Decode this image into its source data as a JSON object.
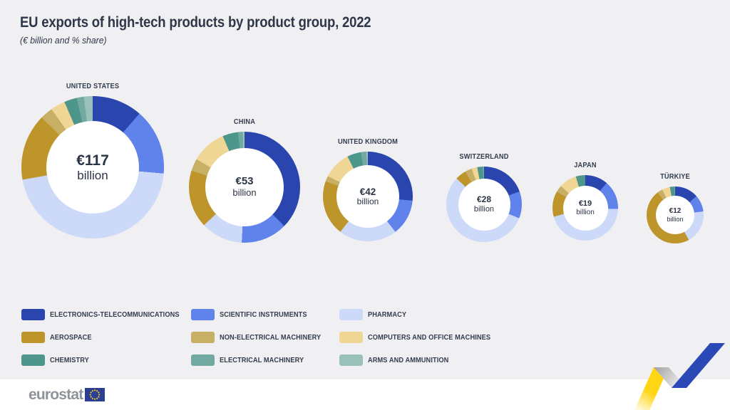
{
  "title": "EU exports of high-tech products by product group, 2022",
  "subtitle": "(€ billion and % share)",
  "logo": {
    "text": "eurostat"
  },
  "colors": {
    "background": "#f0f0f2",
    "footer": "#ffffff",
    "text": "#333d4f",
    "donut_hole": "#ffffff",
    "logo_text": "#8e9399",
    "flag_blue": "#2c3f94",
    "flag_star_yellow": "#ffd617",
    "ribbon_yellow": "#ffd514",
    "ribbon_blue": "#2a49b7"
  },
  "product_groups": [
    {
      "label": "ELECTRONICS-TELECOMMUNICATIONS",
      "color": "#2b45ae"
    },
    {
      "label": "SCIENTIFIC INSTRUMENTS",
      "color": "#5f82eb"
    },
    {
      "label": "PHARMACY",
      "color": "#ccd9f8"
    },
    {
      "label": "AEROSPACE",
      "color": "#bd952b"
    },
    {
      "label": "NON-ELECTRICAL MACHINERY",
      "color": "#c7b066"
    },
    {
      "label": "COMPUTERS AND OFFICE MACHINES",
      "color": "#f0d694"
    },
    {
      "label": "CHEMISTRY",
      "color": "#4d968c"
    },
    {
      "label": "ELECTRICAL MACHINERY",
      "color": "#72a9a0"
    },
    {
      "label": "ARMS AND AMMUNITION",
      "color": "#99c0b9"
    }
  ],
  "legend_column_order": [
    [
      0,
      3,
      6
    ],
    [
      1,
      4,
      7
    ],
    [
      2,
      5,
      8
    ]
  ],
  "chart_data": [
    {
      "type": "pie",
      "title": "UNITED STATES",
      "center_value": "€117",
      "center_unit": "billion",
      "total_eur_billion": 117,
      "labels": [
        "ELECTRONICS-TELECOMMUNICATIONS",
        "SCIENTIFIC INSTRUMENTS",
        "PHARMACY",
        "AEROSPACE",
        "NON-ELECTRICAL MACHINERY",
        "COMPUTERS AND OFFICE MACHINES",
        "CHEMISTRY",
        "ELECTRICAL MACHINERY",
        "ARMS AND AMMUNITION"
      ],
      "values": [
        11.4,
        15.0,
        45.8,
        15.1,
        2.9,
        3.3,
        2.9,
        1.6,
        2.0
      ]
    },
    {
      "type": "pie",
      "title": "CHINA",
      "center_value": "€53",
      "center_unit": "billion",
      "total_eur_billion": 53,
      "labels": [
        "ELECTRONICS-TELECOMMUNICATIONS",
        "SCIENTIFIC INSTRUMENTS",
        "PHARMACY",
        "AEROSPACE",
        "NON-ELECTRICAL MACHINERY",
        "COMPUTERS AND OFFICE MACHINES",
        "CHEMISTRY",
        "ELECTRICAL MACHINERY",
        "ARMS AND AMMUNITION"
      ],
      "values": [
        37.3,
        13.5,
        12.2,
        16.8,
        3.6,
        10.2,
        4.5,
        1.4,
        0.5
      ]
    },
    {
      "type": "pie",
      "title": "UNITED KINGDOM",
      "center_value": "€42",
      "center_unit": "billion",
      "total_eur_billion": 42,
      "labels": [
        "ELECTRONICS-TELECOMMUNICATIONS",
        "SCIENTIFIC INSTRUMENTS",
        "PHARMACY",
        "AEROSPACE",
        "NON-ELECTRICAL MACHINERY",
        "COMPUTERS AND OFFICE MACHINES",
        "CHEMISTRY",
        "ELECTRICAL MACHINERY",
        "ARMS AND AMMUNITION"
      ],
      "values": [
        26.5,
        13.0,
        21.0,
        20.0,
        2.0,
        10.0,
        5.0,
        2.0,
        0.5
      ]
    },
    {
      "type": "pie",
      "title": "SWITZERLAND",
      "center_value": "€28",
      "center_unit": "billion",
      "total_eur_billion": 28,
      "labels": [
        "ELECTRONICS-TELECOMMUNICATIONS",
        "SCIENTIFIC INSTRUMENTS",
        "PHARMACY",
        "AEROSPACE",
        "NON-ELECTRICAL MACHINERY",
        "COMPUTERS AND OFFICE MACHINES",
        "CHEMISTRY",
        "ELECTRICAL MACHINERY",
        "ARMS AND AMMUNITION"
      ],
      "values": [
        19.5,
        11.5,
        56.0,
        4.7,
        3.0,
        2.4,
        2.4,
        0.5,
        0.0
      ]
    },
    {
      "type": "pie",
      "title": "JAPAN",
      "center_value": "€19",
      "center_unit": "billion",
      "total_eur_billion": 19,
      "labels": [
        "ELECTRONICS-TELECOMMUNICATIONS",
        "SCIENTIFIC INSTRUMENTS",
        "PHARMACY",
        "AEROSPACE",
        "NON-ELECTRICAL MACHINERY",
        "COMPUTERS AND OFFICE MACHINES",
        "CHEMISTRY",
        "ELECTRICAL MACHINERY",
        "ARMS AND AMMUNITION"
      ],
      "values": [
        11.3,
        14.3,
        45.0,
        12.6,
        3.4,
        8.7,
        4.7,
        0.0,
        0.0
      ]
    },
    {
      "type": "pie",
      "title": "TÜRKIYE",
      "center_value": "€12",
      "center_unit": "billion",
      "total_eur_billion": 12,
      "labels": [
        "ELECTRONICS-TELECOMMUNICATIONS",
        "SCIENTIFIC INSTRUMENTS",
        "PHARMACY",
        "AEROSPACE",
        "NON-ELECTRICAL MACHINERY",
        "COMPUTERS AND OFFICE MACHINES",
        "CHEMISTRY",
        "ELECTRICAL MACHINERY",
        "ARMS AND AMMUNITION"
      ],
      "values": [
        13.5,
        9.5,
        19.0,
        47.5,
        3.0,
        4.5,
        2.5,
        0.5,
        0.0
      ]
    }
  ]
}
